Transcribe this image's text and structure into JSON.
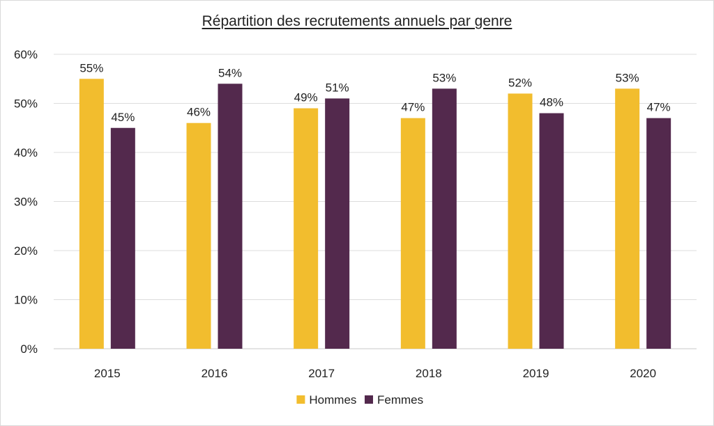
{
  "chart_data": {
    "type": "bar",
    "title": "Répartition des recrutements annuels par genre",
    "xlabel": "",
    "ylabel": "",
    "categories": [
      "2015",
      "2016",
      "2017",
      "2018",
      "2019",
      "2020"
    ],
    "series": [
      {
        "name": "Hommes",
        "color": "#f2bd2e",
        "values": [
          55,
          46,
          49,
          47,
          52,
          53
        ]
      },
      {
        "name": "Femmes",
        "color": "#53294d",
        "values": [
          45,
          54,
          51,
          53,
          48,
          47
        ]
      }
    ],
    "ylim": [
      0,
      60
    ],
    "yticks": [
      "0%",
      "10%",
      "20%",
      "30%",
      "40%",
      "50%",
      "60%"
    ],
    "value_suffix": "%",
    "grid": true,
    "legend_position": "bottom"
  }
}
